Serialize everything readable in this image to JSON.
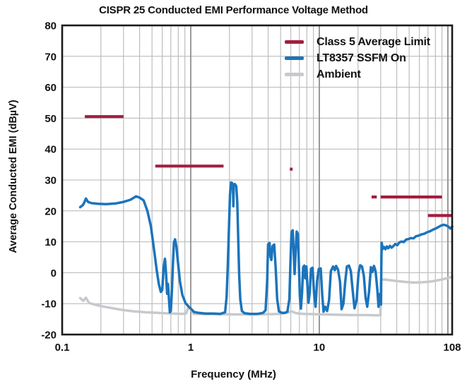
{
  "chart_data": {
    "type": "line",
    "title": "CISPR 25 Conducted EMI Performance Voltage Method",
    "xlabel": "Frequency (MHz)",
    "ylabel": "Average Conducted EMI (dBµV)",
    "x_scale": "log",
    "xlim": [
      0.1,
      108
    ],
    "ylim": [
      -20,
      80
    ],
    "grid": true,
    "legend_position": "top-right-inside",
    "x_ticks": [
      "0.1",
      "1",
      "10",
      "108"
    ],
    "x_tick_values": [
      0.1,
      1,
      10,
      108
    ],
    "y_ticks": [
      80,
      70,
      60,
      50,
      40,
      30,
      20,
      10,
      0,
      -10,
      -20
    ],
    "series": [
      {
        "name": "Class 5 Average Limit",
        "color": "#A21E3F",
        "style": "segments",
        "segments": [
          {
            "band": [
              0.15,
              0.3
            ],
            "level": 50.5
          },
          {
            "band": [
              0.53,
              1.8
            ],
            "level": 34.5
          },
          {
            "band": [
              5.9,
              6.2
            ],
            "level": 33.5
          },
          {
            "band": [
              25.5,
              28
            ],
            "level": 24.5
          },
          {
            "band": [
              30,
              90
            ],
            "level": 24.5
          },
          {
            "band": [
              70,
              108
            ],
            "level": 18.5
          }
        ]
      },
      {
        "name": "LT8357 SSFM On",
        "color": "#1B74BC",
        "style": "line",
        "points": [
          [
            0.138,
            21.2
          ],
          [
            0.145,
            21.9
          ],
          [
            0.149,
            22.8
          ],
          [
            0.153,
            24.0
          ],
          [
            0.159,
            22.9
          ],
          [
            0.17,
            22.5
          ],
          [
            0.19,
            22.3
          ],
          [
            0.22,
            22.2
          ],
          [
            0.26,
            22.4
          ],
          [
            0.3,
            22.9
          ],
          [
            0.34,
            23.6
          ],
          [
            0.375,
            24.7
          ],
          [
            0.4,
            24.3
          ],
          [
            0.43,
            23.4
          ],
          [
            0.46,
            20.0
          ],
          [
            0.49,
            15.0
          ],
          [
            0.52,
            7.0
          ],
          [
            0.545,
            0.5
          ],
          [
            0.565,
            -3.8
          ],
          [
            0.585,
            -6.2
          ],
          [
            0.6,
            -5.6
          ],
          [
            0.617,
            2.0
          ],
          [
            0.63,
            4.5
          ],
          [
            0.643,
            -0.5
          ],
          [
            0.655,
            -6.8
          ],
          [
            0.665,
            -3.6
          ],
          [
            0.676,
            -8.0
          ],
          [
            0.688,
            -12.8
          ],
          [
            0.7,
            -12.4
          ],
          [
            0.714,
            -6.0
          ],
          [
            0.727,
            3.0
          ],
          [
            0.74,
            9.8
          ],
          [
            0.755,
            10.8
          ],
          [
            0.773,
            8.6
          ],
          [
            0.8,
            2.5
          ],
          [
            0.824,
            -2.8
          ],
          [
            0.86,
            -7.2
          ],
          [
            0.91,
            -9.8
          ],
          [
            0.96,
            -10.9
          ],
          [
            1.0,
            -11.6
          ],
          [
            1.06,
            -12.7
          ],
          [
            1.15,
            -13.0
          ],
          [
            1.3,
            -13.2
          ],
          [
            1.5,
            -13.2
          ],
          [
            1.7,
            -13.3
          ],
          [
            1.85,
            -12.8
          ],
          [
            1.9,
            -8.0
          ],
          [
            1.94,
            1.5
          ],
          [
            1.98,
            14.0
          ],
          [
            2.02,
            25.0
          ],
          [
            2.06,
            29.2
          ],
          [
            2.1,
            29.0
          ],
          [
            2.13,
            28.4
          ],
          [
            2.145,
            21.5
          ],
          [
            2.16,
            28.2
          ],
          [
            2.2,
            28.7
          ],
          [
            2.26,
            28.0
          ],
          [
            2.3,
            23.0
          ],
          [
            2.34,
            11.0
          ],
          [
            2.38,
            -0.5
          ],
          [
            2.43,
            -8.6
          ],
          [
            2.5,
            -12.4
          ],
          [
            2.62,
            -13.1
          ],
          [
            2.9,
            -13.3
          ],
          [
            3.3,
            -13.3
          ],
          [
            3.65,
            -13.0
          ],
          [
            3.82,
            -12.2
          ],
          [
            3.93,
            -3.0
          ],
          [
            4.0,
            9.2
          ],
          [
            4.1,
            9.6
          ],
          [
            4.17,
            5.2
          ],
          [
            4.24,
            4.1
          ],
          [
            4.33,
            8.6
          ],
          [
            4.46,
            9.1
          ],
          [
            4.58,
            1.5
          ],
          [
            4.7,
            -8.5
          ],
          [
            4.85,
            -12.5
          ],
          [
            5.1,
            -13.0
          ],
          [
            5.4,
            -13.0
          ],
          [
            5.65,
            -12.6
          ],
          [
            5.85,
            -8.5
          ],
          [
            5.97,
            4.0
          ],
          [
            6.08,
            13.2
          ],
          [
            6.22,
            13.7
          ],
          [
            6.33,
            6.0
          ],
          [
            6.43,
            -0.4
          ],
          [
            6.55,
            7.0
          ],
          [
            6.67,
            13.3
          ],
          [
            6.81,
            12.6
          ],
          [
            6.94,
            2.5
          ],
          [
            7.06,
            -7.5
          ],
          [
            7.19,
            -11.6
          ],
          [
            7.34,
            -6.5
          ],
          [
            7.49,
            1.8
          ],
          [
            7.64,
            2.3
          ],
          [
            7.79,
            -1.8
          ],
          [
            7.94,
            2.0
          ],
          [
            8.09,
            -4.5
          ],
          [
            8.24,
            -9.7
          ],
          [
            8.42,
            -6.5
          ],
          [
            8.62,
            1.3
          ],
          [
            8.86,
            1.6
          ],
          [
            9.1,
            -6.5
          ],
          [
            9.35,
            -11.0
          ],
          [
            9.62,
            -2.5
          ],
          [
            9.9,
            1.2
          ],
          [
            10.25,
            1.4
          ],
          [
            10.55,
            -7.5
          ],
          [
            10.8,
            -12.6
          ],
          [
            11.1,
            -11.0
          ],
          [
            11.5,
            -12.4
          ],
          [
            11.9,
            -9.0
          ],
          [
            12.3,
            0.5
          ],
          [
            12.8,
            2.0
          ],
          [
            13.2,
            0.8
          ],
          [
            13.5,
            2.2
          ],
          [
            14.0,
            1.0
          ],
          [
            14.5,
            -3.0
          ],
          [
            14.9,
            -11.8
          ],
          [
            15.4,
            -10.0
          ],
          [
            15.9,
            -3.0
          ],
          [
            16.4,
            2.0
          ],
          [
            17.0,
            2.3
          ],
          [
            17.6,
            0.5
          ],
          [
            18.2,
            -6.0
          ],
          [
            18.8,
            -11.5
          ],
          [
            19.5,
            -9.0
          ],
          [
            20.2,
            0.0
          ],
          [
            20.8,
            2.4
          ],
          [
            21.5,
            2.0
          ],
          [
            22.2,
            -1.0
          ],
          [
            22.9,
            -8.0
          ],
          [
            23.6,
            -11.0
          ],
          [
            24.4,
            -6.0
          ],
          [
            25.2,
            1.8
          ],
          [
            25.9,
            0.2
          ],
          [
            26.6,
            2.2
          ],
          [
            27.4,
            0.5
          ],
          [
            28.2,
            -5.0
          ],
          [
            28.9,
            -11.0
          ],
          [
            29.5,
            -6.9
          ],
          [
            29.9,
            -10.0
          ],
          [
            30.2,
            -10.3
          ],
          [
            30.35,
            2.0
          ],
          [
            30.55,
            9.7
          ],
          [
            31.2,
            7.7
          ],
          [
            31.9,
            8.3
          ],
          [
            32.7,
            7.6
          ],
          [
            33.5,
            8.5
          ],
          [
            34.4,
            7.9
          ],
          [
            35.4,
            8.7
          ],
          [
            36.5,
            8.1
          ],
          [
            37.7,
            8.6
          ],
          [
            39.0,
            9.3
          ],
          [
            40.4,
            8.9
          ],
          [
            41.9,
            9.8
          ],
          [
            43.6,
            10.1
          ],
          [
            45.4,
            9.9
          ],
          [
            47.3,
            10.7
          ],
          [
            49.4,
            10.9
          ],
          [
            51.6,
            11.2
          ],
          [
            54.0,
            11.1
          ],
          [
            56.6,
            11.8
          ],
          [
            59.4,
            12.0
          ],
          [
            62.4,
            12.4
          ],
          [
            65.6,
            12.6
          ],
          [
            69.0,
            13.1
          ],
          [
            72.6,
            13.4
          ],
          [
            76.4,
            13.9
          ],
          [
            80.4,
            14.3
          ],
          [
            84.6,
            14.8
          ],
          [
            89.0,
            15.3
          ],
          [
            93.0,
            15.5
          ],
          [
            97.0,
            15.3
          ],
          [
            101.0,
            14.9
          ],
          [
            104.5,
            14.3
          ],
          [
            108,
            14.9
          ]
        ]
      },
      {
        "name": "Ambient",
        "color": "#C6C9CD",
        "style": "line",
        "points": [
          [
            0.138,
            -8.2
          ],
          [
            0.146,
            -9.1
          ],
          [
            0.153,
            -8.1
          ],
          [
            0.162,
            -9.8
          ],
          [
            0.175,
            -10.2
          ],
          [
            0.2,
            -10.8
          ],
          [
            0.24,
            -11.4
          ],
          [
            0.29,
            -12.0
          ],
          [
            0.36,
            -12.5
          ],
          [
            0.45,
            -12.8
          ],
          [
            0.55,
            -13.0
          ],
          [
            0.7,
            -13.2
          ],
          [
            0.85,
            -13.3
          ],
          [
            0.92,
            -13.2
          ],
          [
            0.955,
            -11.4
          ],
          [
            1.0,
            -11.6
          ],
          [
            1.05,
            -13.3
          ],
          [
            1.3,
            -13.4
          ],
          [
            1.7,
            -13.4
          ],
          [
            2.2,
            -13.5
          ],
          [
            3.0,
            -13.5
          ],
          [
            4.0,
            -13.4
          ],
          [
            5.0,
            -13.3
          ],
          [
            5.7,
            -12.9
          ],
          [
            6.1,
            -12.5
          ],
          [
            6.6,
            -13.1
          ],
          [
            7.5,
            -13.3
          ],
          [
            9.0,
            -13.4
          ],
          [
            11,
            -13.5
          ],
          [
            14,
            -13.6
          ],
          [
            18,
            -13.7
          ],
          [
            23,
            -13.7
          ],
          [
            28,
            -13.8
          ],
          [
            29.9,
            -13.8
          ],
          [
            30.15,
            -2.3
          ],
          [
            32,
            -2.2
          ],
          [
            35,
            -2.4
          ],
          [
            40,
            -2.7
          ],
          [
            45,
            -2.9
          ],
          [
            50,
            -3.1
          ],
          [
            56,
            -3.2
          ],
          [
            62,
            -3.1
          ],
          [
            68,
            -3.0
          ],
          [
            75,
            -2.8
          ],
          [
            82,
            -2.5
          ],
          [
            90,
            -2.2
          ],
          [
            96,
            -1.9
          ],
          [
            102,
            -1.6
          ],
          [
            108,
            -1.4
          ]
        ]
      }
    ]
  }
}
